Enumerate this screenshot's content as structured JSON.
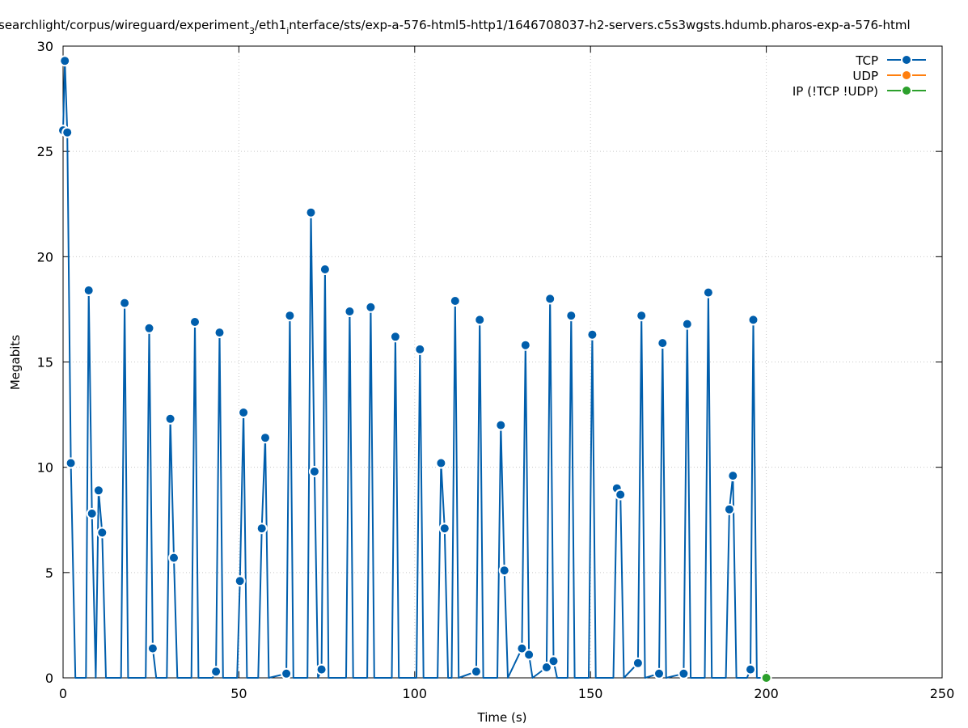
{
  "chart_data": {
    "type": "line",
    "title_prefix": "searchlight/corpus/wireguard/experiment",
    "title_sub1": "3",
    "title_mid": "/eth1",
    "title_sub2": "i",
    "title_suffix": "nterface/sts/exp-a-576-html5-http1/1646708037-h2-servers.c5s3wgsts.hdumb.pharos-exp-a-576-html",
    "xlabel": "Time (s)",
    "ylabel": "Megabits",
    "xlim": [
      0,
      250
    ],
    "ylim": [
      0,
      30
    ],
    "xticks": [
      0,
      50,
      100,
      150,
      200,
      250
    ],
    "yticks": [
      0,
      5,
      10,
      15,
      20,
      25,
      30
    ],
    "grid": true,
    "legend_position": "top-right",
    "series": [
      {
        "name": "TCP",
        "color": "#005eac",
        "points": [
          [
            0,
            26
          ],
          [
            0.5,
            29.3
          ],
          [
            1.2,
            25.9
          ],
          [
            2.2,
            10.2
          ],
          [
            3.5,
            0
          ],
          [
            6.5,
            0
          ],
          [
            7.3,
            18.4
          ],
          [
            8.2,
            7.8
          ],
          [
            9.3,
            0
          ],
          [
            10.1,
            8.9
          ],
          [
            11.1,
            6.9
          ],
          [
            12.2,
            0
          ],
          [
            16.5,
            0
          ],
          [
            17.5,
            17.8
          ],
          [
            18.5,
            0
          ],
          [
            23.5,
            0
          ],
          [
            24.5,
            16.6
          ],
          [
            25.5,
            1.4
          ],
          [
            26.5,
            0
          ],
          [
            29.5,
            0
          ],
          [
            30.5,
            12.3
          ],
          [
            31.5,
            5.7
          ],
          [
            32.5,
            0
          ],
          [
            36.5,
            0
          ],
          [
            37.5,
            16.9
          ],
          [
            38.5,
            0
          ],
          [
            42.5,
            0
          ],
          [
            43.5,
            0.3
          ],
          [
            44.5,
            16.4
          ],
          [
            45.5,
            0
          ],
          [
            49.5,
            0
          ],
          [
            50.3,
            4.6
          ],
          [
            51.3,
            12.6
          ],
          [
            52.3,
            0
          ],
          [
            55.5,
            0
          ],
          [
            56.5,
            7.1
          ],
          [
            57.5,
            11.4
          ],
          [
            58.5,
            0
          ],
          [
            63.5,
            0.2
          ],
          [
            64.5,
            17.2
          ],
          [
            65.5,
            0
          ],
          [
            69.5,
            0
          ],
          [
            70.5,
            22.1
          ],
          [
            71.5,
            9.8
          ],
          [
            72.5,
            0
          ],
          [
            73.5,
            0.4
          ],
          [
            74.5,
            19.4
          ],
          [
            75.5,
            0
          ],
          [
            80.5,
            0
          ],
          [
            81.5,
            17.4
          ],
          [
            82.5,
            0
          ],
          [
            86.5,
            0
          ],
          [
            87.5,
            17.6
          ],
          [
            88.5,
            0
          ],
          [
            93.5,
            0
          ],
          [
            94.5,
            16.2
          ],
          [
            95.5,
            0
          ],
          [
            100.5,
            0
          ],
          [
            101.5,
            15.6
          ],
          [
            102.5,
            0
          ],
          [
            106.5,
            0
          ],
          [
            107.5,
            10.2
          ],
          [
            108.5,
            7.1
          ],
          [
            109.5,
            0
          ],
          [
            110.5,
            0
          ],
          [
            111.5,
            17.9
          ],
          [
            112.5,
            0
          ],
          [
            117.5,
            0.3
          ],
          [
            118.5,
            17
          ],
          [
            119.5,
            0
          ],
          [
            123.5,
            0
          ],
          [
            124.5,
            12
          ],
          [
            125.5,
            5.1
          ],
          [
            126.5,
            0
          ],
          [
            130.5,
            1.4
          ],
          [
            131.5,
            15.8
          ],
          [
            132.5,
            1.1
          ],
          [
            133.5,
            0
          ],
          [
            137.5,
            0.5
          ],
          [
            138.5,
            18
          ],
          [
            139.5,
            0.8
          ],
          [
            140.5,
            0
          ],
          [
            143.5,
            0
          ],
          [
            144.5,
            17.2
          ],
          [
            145.5,
            0
          ],
          [
            149.5,
            0
          ],
          [
            150.5,
            16.3
          ],
          [
            151.5,
            0
          ],
          [
            156.5,
            0
          ],
          [
            157.5,
            9
          ],
          [
            158.5,
            8.7
          ],
          [
            159.5,
            0
          ],
          [
            163.5,
            0.7
          ],
          [
            164.5,
            17.2
          ],
          [
            165.5,
            0
          ],
          [
            169.5,
            0.2
          ],
          [
            170.5,
            15.9
          ],
          [
            171.5,
            0
          ],
          [
            176.5,
            0.2
          ],
          [
            177.5,
            16.8
          ],
          [
            178.5,
            0
          ],
          [
            182.5,
            0
          ],
          [
            183.5,
            18.3
          ],
          [
            184.5,
            0
          ],
          [
            188.5,
            0
          ],
          [
            189.5,
            8
          ],
          [
            190.5,
            9.6
          ],
          [
            191.5,
            0
          ],
          [
            194.5,
            0
          ],
          [
            195.5,
            0.4
          ],
          [
            196.3,
            17
          ],
          [
            197.3,
            0
          ],
          [
            200,
            0
          ]
        ]
      },
      {
        "name": "UDP",
        "color": "#ff7f0e",
        "points": []
      },
      {
        "name": "IP (!TCP  !UDP)",
        "color": "#2ca02c",
        "points": [
          [
            200,
            0
          ]
        ]
      }
    ]
  }
}
